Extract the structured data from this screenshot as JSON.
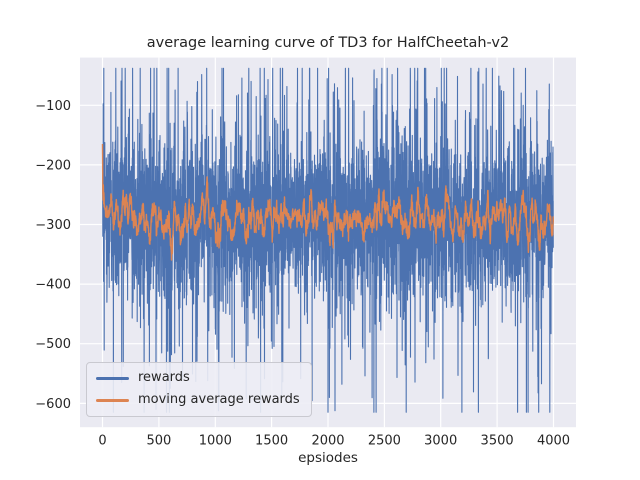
{
  "chart_data": {
    "type": "line",
    "title": "average learning curve of TD3 for HalfCheetah-v2",
    "xlabel": "epsiodes",
    "ylabel": "",
    "x_range": [
      0,
      4000
    ],
    "xlim": [
      -200,
      4200
    ],
    "ylim": [
      -640,
      -20
    ],
    "xticks": [
      0,
      500,
      1000,
      1500,
      2000,
      2500,
      3000,
      3500,
      4000
    ],
    "yticks": [
      -100,
      -200,
      -300,
      -400,
      -500,
      -600
    ],
    "grid": true,
    "legend": {
      "position": "lower left",
      "entries": [
        "rewards",
        "moving average rewards"
      ]
    },
    "n_episodes": 4000,
    "series": [
      {
        "name": "rewards",
        "color": "#4c72b0",
        "mean": -290,
        "typical_range": [
          -400,
          -180
        ],
        "extreme_range": [
          -610,
          -40
        ],
        "description": "per-episode reward; high-variance noise with frequent spikes, flat trend (no improvement)"
      },
      {
        "name": "moving average rewards",
        "color": "#dd8452",
        "mean": -285,
        "typical_range": [
          -330,
          -240
        ],
        "window": 20,
        "description": "trailing moving average of rewards; flat band around -285 with initial spike near -165"
      }
    ],
    "generator": {
      "seed": 20,
      "distribution": "gaussian-mixture",
      "base_std": 62,
      "spike_std": 160,
      "spike_prob": 0.17,
      "clip": [
        -615,
        -38
      ],
      "initial_value": -165
    },
    "style": {
      "axes_background": "#eaeaf2",
      "grid_color": "#ffffff",
      "text_color": "#262626",
      "figure_background": "#ffffff"
    }
  }
}
